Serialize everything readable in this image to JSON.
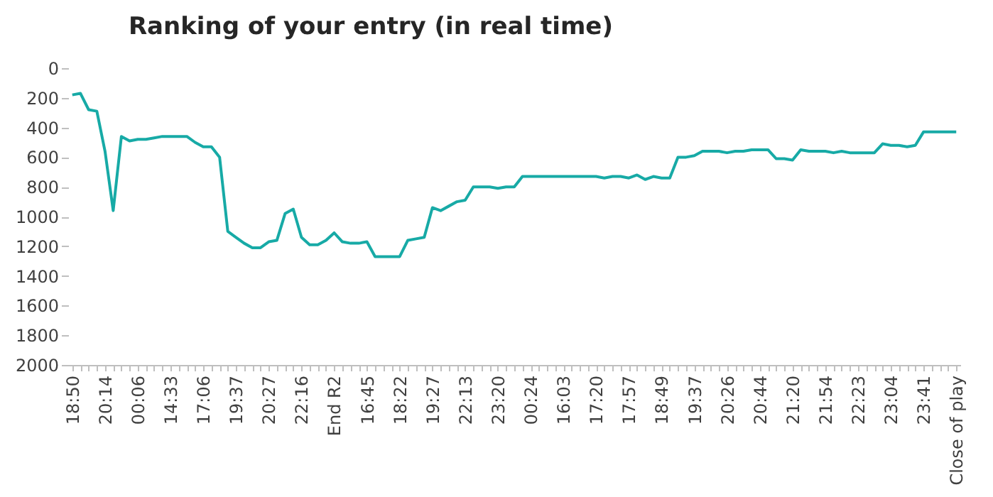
{
  "chart_data": {
    "type": "line",
    "title": "Ranking of your entry (in real time)",
    "categories": [
      "18:50",
      null,
      null,
      null,
      "20:14",
      null,
      null,
      null,
      "00:06",
      null,
      null,
      null,
      "14:33",
      null,
      null,
      null,
      "17:06",
      null,
      null,
      null,
      "19:37",
      null,
      null,
      null,
      "20:27",
      null,
      null,
      null,
      "22:16",
      null,
      null,
      null,
      "End R2",
      null,
      null,
      null,
      "16:45",
      null,
      null,
      null,
      "18:22",
      null,
      null,
      null,
      "19:27",
      null,
      null,
      null,
      "22:13",
      null,
      null,
      null,
      "23:20",
      null,
      null,
      null,
      "00:24",
      null,
      null,
      null,
      "16:03",
      null,
      null,
      null,
      "17:20",
      null,
      null,
      null,
      "17:57",
      null,
      null,
      null,
      "18:49",
      null,
      null,
      null,
      "19:37",
      null,
      null,
      null,
      "20:26",
      null,
      null,
      null,
      "20:44",
      null,
      null,
      null,
      "21:20",
      null,
      null,
      null,
      "21:54",
      null,
      null,
      null,
      "22:23",
      null,
      null,
      null,
      "23:04",
      null,
      null,
      null,
      "23:41",
      null,
      null,
      null,
      "Close of play"
    ],
    "series": [
      {
        "color": "#17aaa6",
        "values": [
          180,
          170,
          280,
          290,
          560,
          960,
          460,
          490,
          480,
          480,
          470,
          460,
          460,
          460,
          460,
          500,
          530,
          530,
          600,
          1100,
          1140,
          1180,
          1210,
          1210,
          1170,
          1160,
          980,
          950,
          1140,
          1190,
          1190,
          1160,
          1110,
          1170,
          1180,
          1180,
          1170,
          1270,
          1270,
          1270,
          1270,
          1160,
          1150,
          1140,
          940,
          960,
          930,
          900,
          890,
          800,
          800,
          800,
          810,
          800,
          800,
          730,
          730,
          730,
          730,
          730,
          730,
          730,
          730,
          730,
          730,
          740,
          730,
          730,
          740,
          720,
          750,
          730,
          740,
          740,
          600,
          600,
          590,
          560,
          560,
          560,
          570,
          560,
          560,
          550,
          550,
          550,
          610,
          610,
          620,
          550,
          560,
          560,
          560,
          570,
          560,
          570,
          570,
          570,
          570,
          510,
          520,
          520,
          530,
          520,
          430,
          430,
          430,
          430,
          430
        ]
      }
    ],
    "ylim": [
      2000,
      0
    ],
    "yticks": [
      0,
      200,
      400,
      600,
      800,
      1000,
      1200,
      1400,
      1600,
      1800,
      2000
    ],
    "grid": false,
    "marker": "none",
    "line_style": "solid"
  }
}
